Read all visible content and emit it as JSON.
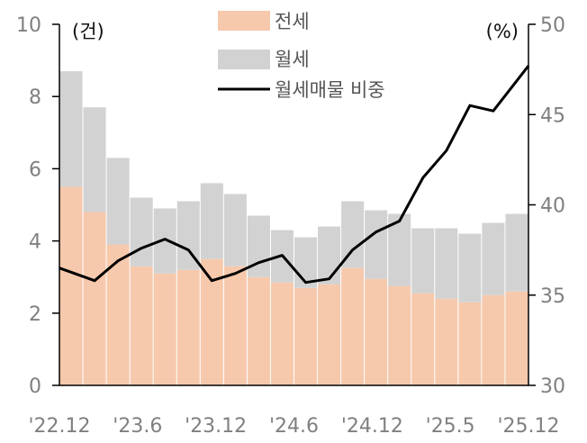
{
  "chart_data": {
    "type": "bar+line",
    "left_unit": "(건)",
    "right_unit": "(%)",
    "x_ticks": [
      "'22.12",
      "'23.6",
      "'23.12",
      "'24.6",
      "'24.12",
      "'25.5",
      "'25.12"
    ],
    "y_left": {
      "ticks": [
        "0",
        "2",
        "4",
        "6",
        "8",
        "10"
      ],
      "range": [
        0,
        10
      ]
    },
    "y_right": {
      "ticks": [
        "30",
        "35",
        "40",
        "45",
        "50"
      ],
      "range": [
        30,
        50
      ]
    },
    "legend": [
      {
        "label": "전세",
        "kind": "bar",
        "color": "#f6c9ad"
      },
      {
        "label": "월세",
        "kind": "bar",
        "color": "#d2d2d2"
      },
      {
        "label": "월세매물 비중",
        "kind": "line",
        "color": "#000000"
      }
    ],
    "x": [
      "'22.12",
      "'23.2",
      "'23.4",
      "'23.6",
      "'23.8",
      "'23.10",
      "'23.12",
      "'24.2",
      "'24.4",
      "'24.6",
      "'24.8",
      "'24.10",
      "'24.12",
      "'25.2",
      "'25.4",
      "'25.5",
      "'25.7",
      "'25.9",
      "'25.11",
      "'25.12"
    ],
    "series": [
      {
        "name": "전세",
        "axis": "left",
        "type": "bar",
        "color": "#f6c9ad",
        "values": [
          5.5,
          4.8,
          3.9,
          3.3,
          3.1,
          3.2,
          3.5,
          3.3,
          3.0,
          2.85,
          2.7,
          2.8,
          3.25,
          2.95,
          2.75,
          2.55,
          2.4,
          2.3,
          2.5,
          2.6
        ]
      },
      {
        "name": "월세",
        "axis": "left",
        "type": "bar",
        "color": "#d2d2d2",
        "values": [
          3.2,
          2.9,
          2.4,
          1.9,
          1.8,
          1.9,
          2.1,
          2.0,
          1.7,
          1.45,
          1.4,
          1.6,
          1.85,
          1.9,
          2.0,
          1.8,
          1.95,
          1.9,
          2.0,
          2.15
        ]
      },
      {
        "name": "월세매물 비중",
        "axis": "right",
        "type": "line",
        "color": "#000000",
        "values": [
          36.5,
          35.8,
          36.9,
          37.6,
          38.1,
          37.5,
          35.8,
          36.2,
          36.8,
          37.2,
          35.7,
          35.9,
          37.5,
          38.5,
          39.1,
          41.5,
          43.0,
          45.5,
          45.2,
          47.7
        ]
      }
    ]
  }
}
